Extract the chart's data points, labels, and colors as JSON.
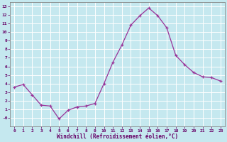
{
  "x": [
    0,
    1,
    2,
    3,
    4,
    5,
    6,
    7,
    8,
    9,
    10,
    11,
    12,
    13,
    14,
    15,
    16,
    17,
    18,
    19,
    20,
    21,
    22,
    23
  ],
  "y": [
    3.6,
    3.9,
    2.7,
    1.5,
    1.4,
    -0.1,
    0.9,
    1.3,
    1.4,
    1.7,
    4.0,
    6.5,
    8.5,
    10.8,
    11.9,
    12.8,
    11.9,
    10.5,
    7.3,
    6.2,
    5.3,
    4.8,
    4.7,
    4.3
  ],
  "xlabel": "Windchill (Refroidissement éolien,°C)",
  "line_color": "#993399",
  "marker_color": "#993399",
  "bg_color": "#c5e8ef",
  "grid_color": "#b0d8e0",
  "axis_label_color": "#660066",
  "tick_color": "#660066",
  "xlim": [
    -0.5,
    23.5
  ],
  "ylim": [
    -1.0,
    13.5
  ],
  "xtick_labels": [
    "0",
    "1",
    "2",
    "3",
    "4",
    "5",
    "6",
    "7",
    "8",
    "9",
    "10",
    "11",
    "12",
    "13",
    "14",
    "15",
    "16",
    "17",
    "18",
    "19",
    "20",
    "21",
    "22",
    "23"
  ],
  "ytick_vals": [
    0,
    1,
    2,
    3,
    4,
    5,
    6,
    7,
    8,
    9,
    10,
    11,
    12,
    13
  ],
  "ytick_labels": [
    "-0",
    "1",
    "2",
    "3",
    "4",
    "5",
    "6",
    "7",
    "8",
    "9",
    "10",
    "11",
    "12",
    "13"
  ]
}
